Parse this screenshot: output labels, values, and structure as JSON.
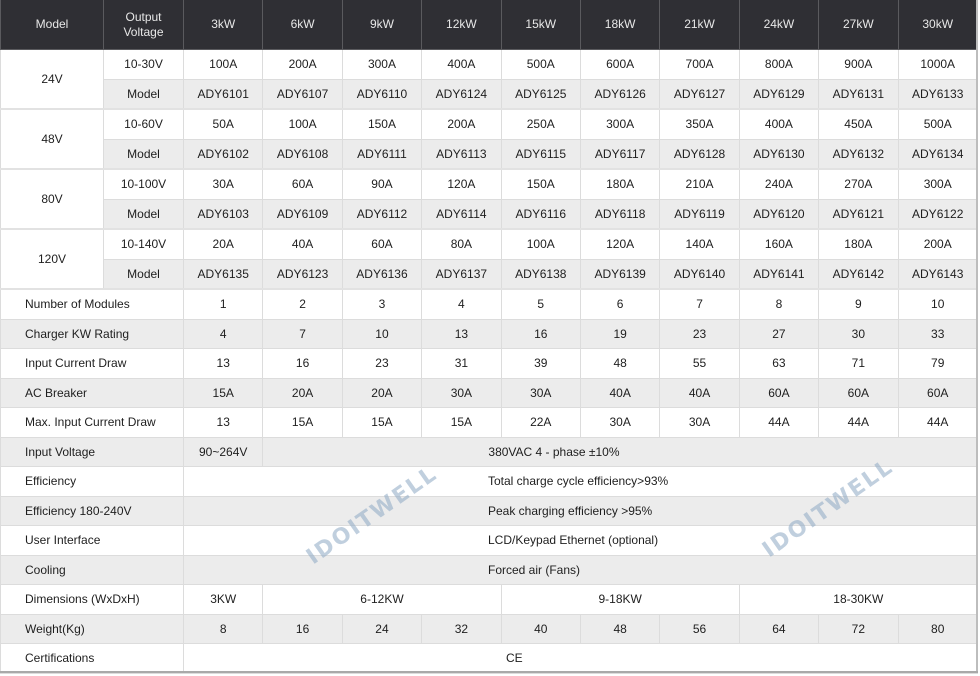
{
  "header": {
    "model": "Model",
    "output_voltage": "Output Voltage",
    "powers": [
      "3kW",
      "6kW",
      "9kW",
      "12kW",
      "15kW",
      "18kW",
      "21kW",
      "24kW",
      "27kW",
      "30kW"
    ]
  },
  "voltage_groups": [
    {
      "voltage": "24V",
      "range": "10-30V",
      "currents": [
        "100A",
        "200A",
        "300A",
        "400A",
        "500A",
        "600A",
        "700A",
        "800A",
        "900A",
        "1000A"
      ],
      "model_label": "Model",
      "models": [
        "ADY6101",
        "ADY6107",
        "ADY6110",
        "ADY6124",
        "ADY6125",
        "ADY6126",
        "ADY6127",
        "ADY6129",
        "ADY6131",
        "ADY6133"
      ]
    },
    {
      "voltage": "48V",
      "range": "10-60V",
      "currents": [
        "50A",
        "100A",
        "150A",
        "200A",
        "250A",
        "300A",
        "350A",
        "400A",
        "450A",
        "500A"
      ],
      "model_label": "Model",
      "models": [
        "ADY6102",
        "ADY6108",
        "ADY6111",
        "ADY6113",
        "ADY6115",
        "ADY6117",
        "ADY6128",
        "ADY6130",
        "ADY6132",
        "ADY6134"
      ]
    },
    {
      "voltage": "80V",
      "range": "10-100V",
      "currents": [
        "30A",
        "60A",
        "90A",
        "120A",
        "150A",
        "180A",
        "210A",
        "240A",
        "270A",
        "300A"
      ],
      "model_label": "Model",
      "models": [
        "ADY6103",
        "ADY6109",
        "ADY6112",
        "ADY6114",
        "ADY6116",
        "ADY6118",
        "ADY6119",
        "ADY6120",
        "ADY6121",
        "ADY6122"
      ]
    },
    {
      "voltage": "120V",
      "range": "10-140V",
      "currents": [
        "20A",
        "40A",
        "60A",
        "80A",
        "100A",
        "120A",
        "140A",
        "160A",
        "180A",
        "200A"
      ],
      "model_label": "Model",
      "models": [
        "ADY6135",
        "ADY6123",
        "ADY6136",
        "ADY6137",
        "ADY6138",
        "ADY6139",
        "ADY6140",
        "ADY6141",
        "ADY6142",
        "ADY6143"
      ]
    }
  ],
  "spec_rows": [
    {
      "label": "Number of Modules",
      "values": [
        "1",
        "2",
        "3",
        "4",
        "5",
        "6",
        "7",
        "8",
        "9",
        "10"
      ]
    },
    {
      "label": "Charger KW Rating",
      "values": [
        "4",
        "7",
        "10",
        "13",
        "16",
        "19",
        "23",
        "27",
        "30",
        "33"
      ]
    },
    {
      "label": "Input Current Draw",
      "values": [
        "13",
        "16",
        "23",
        "31",
        "39",
        "48",
        "55",
        "63",
        "71",
        "79"
      ]
    },
    {
      "label": "AC Breaker",
      "values": [
        "15A",
        "20A",
        "20A",
        "30A",
        "30A",
        "40A",
        "40A",
        "60A",
        "60A",
        "60A"
      ]
    },
    {
      "label": "Max. Input Current Draw",
      "values": [
        "13",
        "15A",
        "15A",
        "15A",
        "22A",
        "30A",
        "30A",
        "44A",
        "44A",
        "44A"
      ]
    }
  ],
  "input_voltage": {
    "label": "Input Voltage",
    "single_phase": "90~264V",
    "three_phase": "380VAC 4 - phase ±10%"
  },
  "merged_rows": [
    {
      "label": "Efficiency",
      "value": "Total charge cycle efficiency>93%"
    },
    {
      "label": "Efficiency 180-240V",
      "value": "Peak charging efficiency >95%"
    },
    {
      "label": "User Interface",
      "value": "LCD/Keypad Ethernet (optional)"
    },
    {
      "label": "Cooling",
      "value": "Forced air (Fans)"
    }
  ],
  "dimensions": {
    "label": "Dimensions (WxDxH)",
    "groups": [
      "3KW",
      "6-12KW",
      "9-18KW",
      "18-30KW"
    ]
  },
  "weight": {
    "label": "Weight(Kg)",
    "values": [
      "8",
      "16",
      "24",
      "32",
      "40",
      "48",
      "56",
      "64",
      "72",
      "80"
    ]
  },
  "certifications": {
    "label": "Certifications",
    "value": "CE"
  },
  "watermark": "IDOITWELL",
  "colors": {
    "header_bg": "#2f2f34",
    "stripe": "#ececec",
    "watermark": "#96afc8"
  }
}
